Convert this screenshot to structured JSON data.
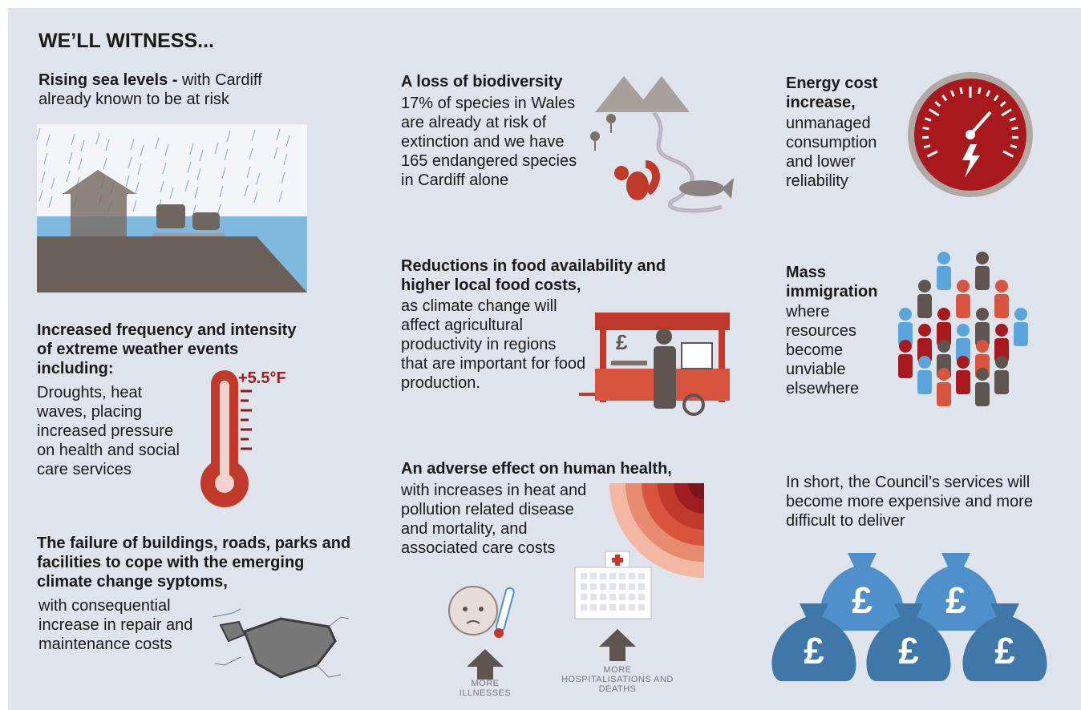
{
  "title": "WE’LL WITNESS...",
  "currency_symbol": "£",
  "items": [
    {
      "heading": "Rising sea levels -",
      "body": "with Cardiff already known to be at risk"
    },
    {
      "heading": "Increased frequency and intensity of extreme weather events including:",
      "body": "Droughts, heat waves, placing increased pressure on health and social care services",
      "label": "+5.5°F"
    },
    {
      "heading": "The failure of buildings, roads, parks and facilities to cope with the emerging climate change syptoms,",
      "body": "with consequential increase in repair and maintenance costs"
    },
    {
      "heading": "A loss of biodiversity",
      "body": "17% of species in Wales are already at risk of extinction  and we have 165 endangered species in Cardiff  alone"
    },
    {
      "heading": "Reductions in food availability and higher local food costs,",
      "body": "as climate change will affect agricultural productivity in regions that are important for food production."
    },
    {
      "heading": "An adverse effect on human health,",
      "body": "with increases in heat and pollution related disease and mortality, and associated care costs",
      "labels": [
        "MORE ILLNESSES",
        "MORE HOSPITALISATIONS AND DEATHS"
      ]
    },
    {
      "heading": "Energy cost increase,",
      "body": "unmanaged consumption and lower reliability"
    },
    {
      "heading": "Mass immigration",
      "body": "where resources become unviable elsewhere"
    }
  ],
  "summary": "In short, the Council’s services will become more expensive and more difficult to deliver"
}
